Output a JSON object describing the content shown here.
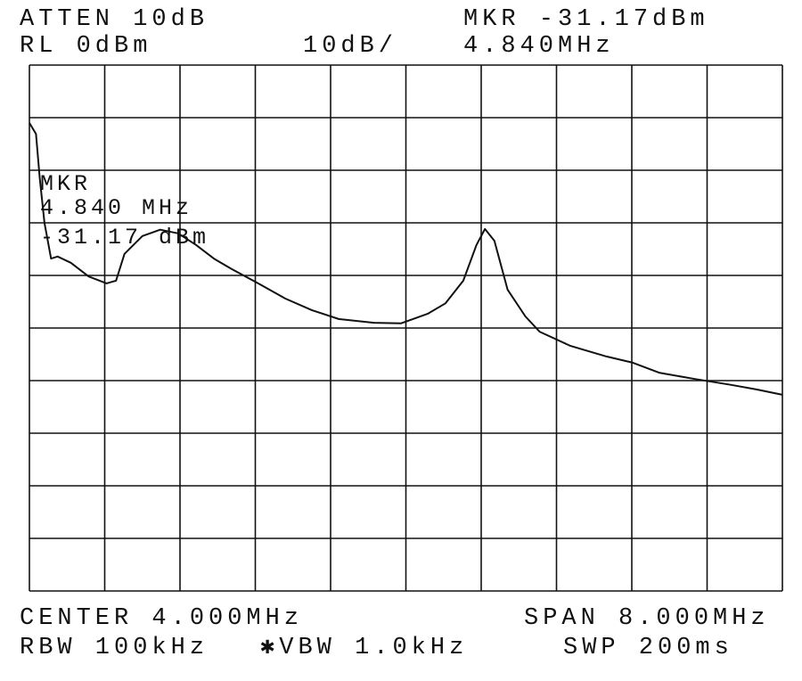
{
  "chart_data": {
    "type": "line",
    "header": {
      "atten": "ATTEN 10dB",
      "ref_level": "RL 0dBm",
      "scale": "10dB/",
      "marker_level": "MKR -31.17dBm",
      "marker_freq": "4.840MHz"
    },
    "footer": {
      "center": "CENTER 4.000MHz",
      "span": "SPAN 8.000MHz",
      "rbw": "RBW 100kHz",
      "vbw": "✱VBW 1.0kHz",
      "sweep": "SWP 200ms"
    },
    "annotation": {
      "title": "MKR",
      "freq": "4.840 MHz",
      "level": "-31.17 dBm"
    },
    "xlim": [
      0,
      8
    ],
    "ylim": [
      -100,
      0
    ],
    "xticks": [
      0,
      0.8,
      1.6,
      2.4,
      3.2,
      4,
      4.8,
      5.6,
      6.4,
      7.2,
      8
    ],
    "yticks": [
      -100,
      -90,
      -80,
      -70,
      -60,
      -50,
      -40,
      -30,
      -20,
      -10,
      0
    ],
    "grid": true,
    "series": [
      {
        "color": "#111111",
        "x": [
          0,
          0.07,
          0.11,
          0.16,
          0.23,
          0.3,
          0.44,
          0.63,
          0.82,
          0.92,
          1.01,
          1.2,
          1.39,
          1.58,
          1.77,
          1.96,
          2.15,
          2.43,
          2.72,
          3.0,
          3.29,
          3.66,
          3.95,
          4.23,
          4.42,
          4.61,
          4.75,
          4.84,
          4.94,
          5.08,
          5.27,
          5.42,
          5.75,
          6.13,
          6.41,
          6.69,
          7.07,
          7.45,
          7.73,
          8.0
        ],
        "values": [
          -11,
          -13.1,
          -21.5,
          -30,
          -36.8,
          -36.4,
          -37.6,
          -40.2,
          -41.5,
          -41,
          -35.9,
          -32.5,
          -31.3,
          -32,
          -34.2,
          -36.8,
          -38.8,
          -41.5,
          -44.4,
          -46.6,
          -48.3,
          -49,
          -49.1,
          -47.3,
          -45.3,
          -41,
          -34.2,
          -31.17,
          -33.4,
          -42.7,
          -47.8,
          -50.7,
          -53.4,
          -55.4,
          -56.6,
          -58.5,
          -59.7,
          -60.8,
          -61.7,
          -62.7
        ]
      }
    ]
  }
}
